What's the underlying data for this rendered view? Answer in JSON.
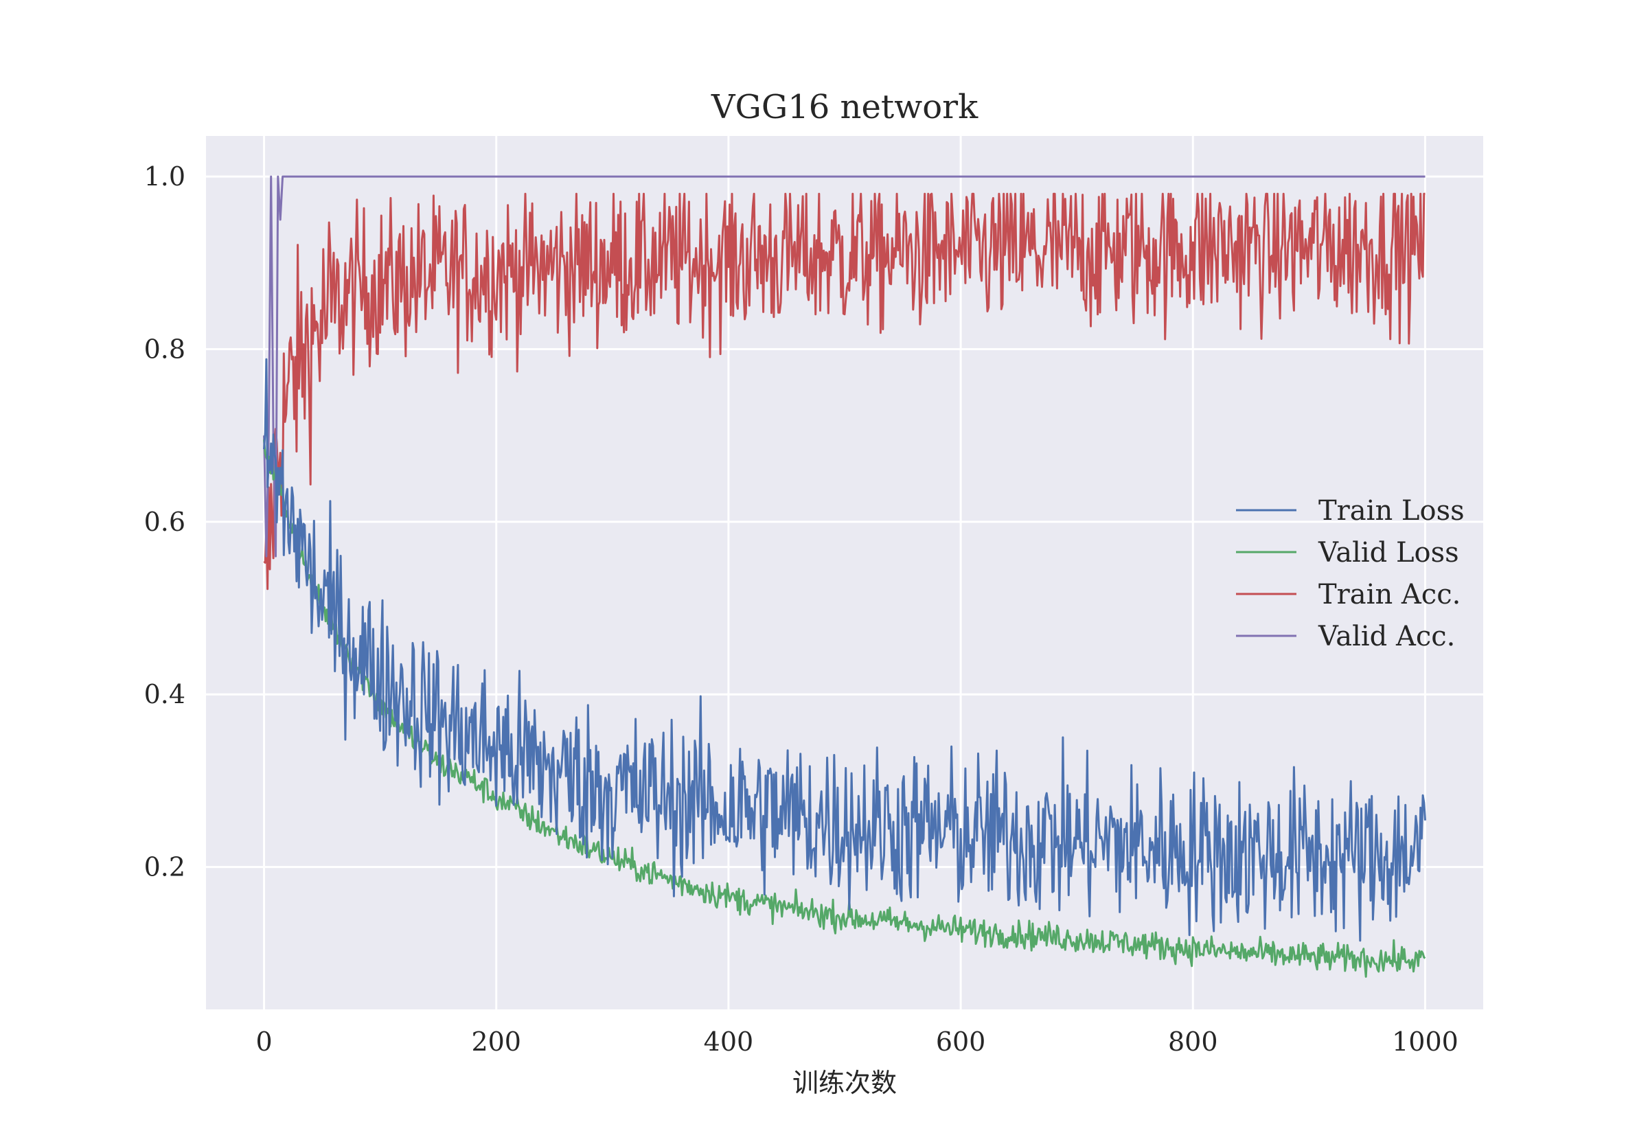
{
  "chart_data": {
    "type": "line",
    "title": "VGG16 network",
    "xlabel": "训练次数",
    "ylabel": "",
    "xlim": [
      -50,
      1050
    ],
    "ylim": [
      0.035,
      1.047
    ],
    "x_ticks": [
      0,
      200,
      400,
      600,
      800,
      1000
    ],
    "x_tick_labels": [
      "0",
      "200",
      "400",
      "600",
      "800",
      "1000"
    ],
    "y_ticks": [
      0.2,
      0.4,
      0.6,
      0.8,
      1.0
    ],
    "y_tick_labels": [
      "0.2",
      "0.4",
      "0.6",
      "0.8",
      "1.0"
    ],
    "grid": true,
    "legend_position": "center-right",
    "background_color": "#EAEAF2",
    "series": [
      {
        "name": "Train Loss",
        "color": "#4C72B0",
        "x": [
          0,
          5,
          10,
          15,
          20,
          30,
          40,
          50,
          60,
          80,
          100,
          120,
          150,
          180,
          200,
          250,
          300,
          350,
          400,
          450,
          500,
          550,
          600,
          650,
          700,
          750,
          800,
          850,
          900,
          950,
          1000
        ],
        "y": [
          0.7,
          0.67,
          0.65,
          0.63,
          0.61,
          0.58,
          0.54,
          0.51,
          0.49,
          0.45,
          0.42,
          0.4,
          0.37,
          0.35,
          0.34,
          0.31,
          0.29,
          0.28,
          0.27,
          0.26,
          0.25,
          0.245,
          0.24,
          0.235,
          0.23,
          0.225,
          0.22,
          0.215,
          0.215,
          0.21,
          0.22
        ],
        "noise": 0.045
      },
      {
        "name": "Valid Loss",
        "color": "#55A868",
        "x": [
          0,
          5,
          10,
          15,
          20,
          30,
          40,
          50,
          60,
          80,
          100,
          120,
          150,
          180,
          200,
          250,
          300,
          350,
          400,
          450,
          500,
          550,
          600,
          650,
          700,
          750,
          800,
          850,
          900,
          950,
          1000
        ],
        "y": [
          0.69,
          0.67,
          0.65,
          0.63,
          0.61,
          0.57,
          0.53,
          0.5,
          0.48,
          0.43,
          0.39,
          0.36,
          0.32,
          0.3,
          0.28,
          0.24,
          0.21,
          0.185,
          0.165,
          0.152,
          0.142,
          0.135,
          0.127,
          0.122,
          0.117,
          0.111,
          0.105,
          0.1,
          0.096,
          0.093,
          0.092
        ],
        "noise": 0.008
      },
      {
        "name": "Train Acc.",
        "color": "#C44E52",
        "x": [
          0,
          5,
          10,
          15,
          20,
          30,
          40,
          50,
          60,
          80,
          100,
          150,
          200,
          300,
          400,
          500,
          600,
          700,
          800,
          900,
          1000
        ],
        "y": [
          0.49,
          0.58,
          0.66,
          0.71,
          0.74,
          0.78,
          0.81,
          0.83,
          0.85,
          0.87,
          0.875,
          0.885,
          0.89,
          0.9,
          0.905,
          0.91,
          0.912,
          0.915,
          0.917,
          0.918,
          0.92
        ],
        "noise": 0.045
      },
      {
        "name": "Valid Acc.",
        "color": "#8172B2",
        "x": [
          0,
          2,
          4,
          6,
          8,
          10,
          12,
          14,
          16,
          18,
          20,
          1000
        ],
        "y": [
          0.7,
          0.56,
          0.7,
          1.0,
          0.7,
          0.56,
          1.0,
          0.95,
          1.0,
          1.0,
          1.0,
          1.0
        ],
        "noise": 0
      }
    ]
  }
}
